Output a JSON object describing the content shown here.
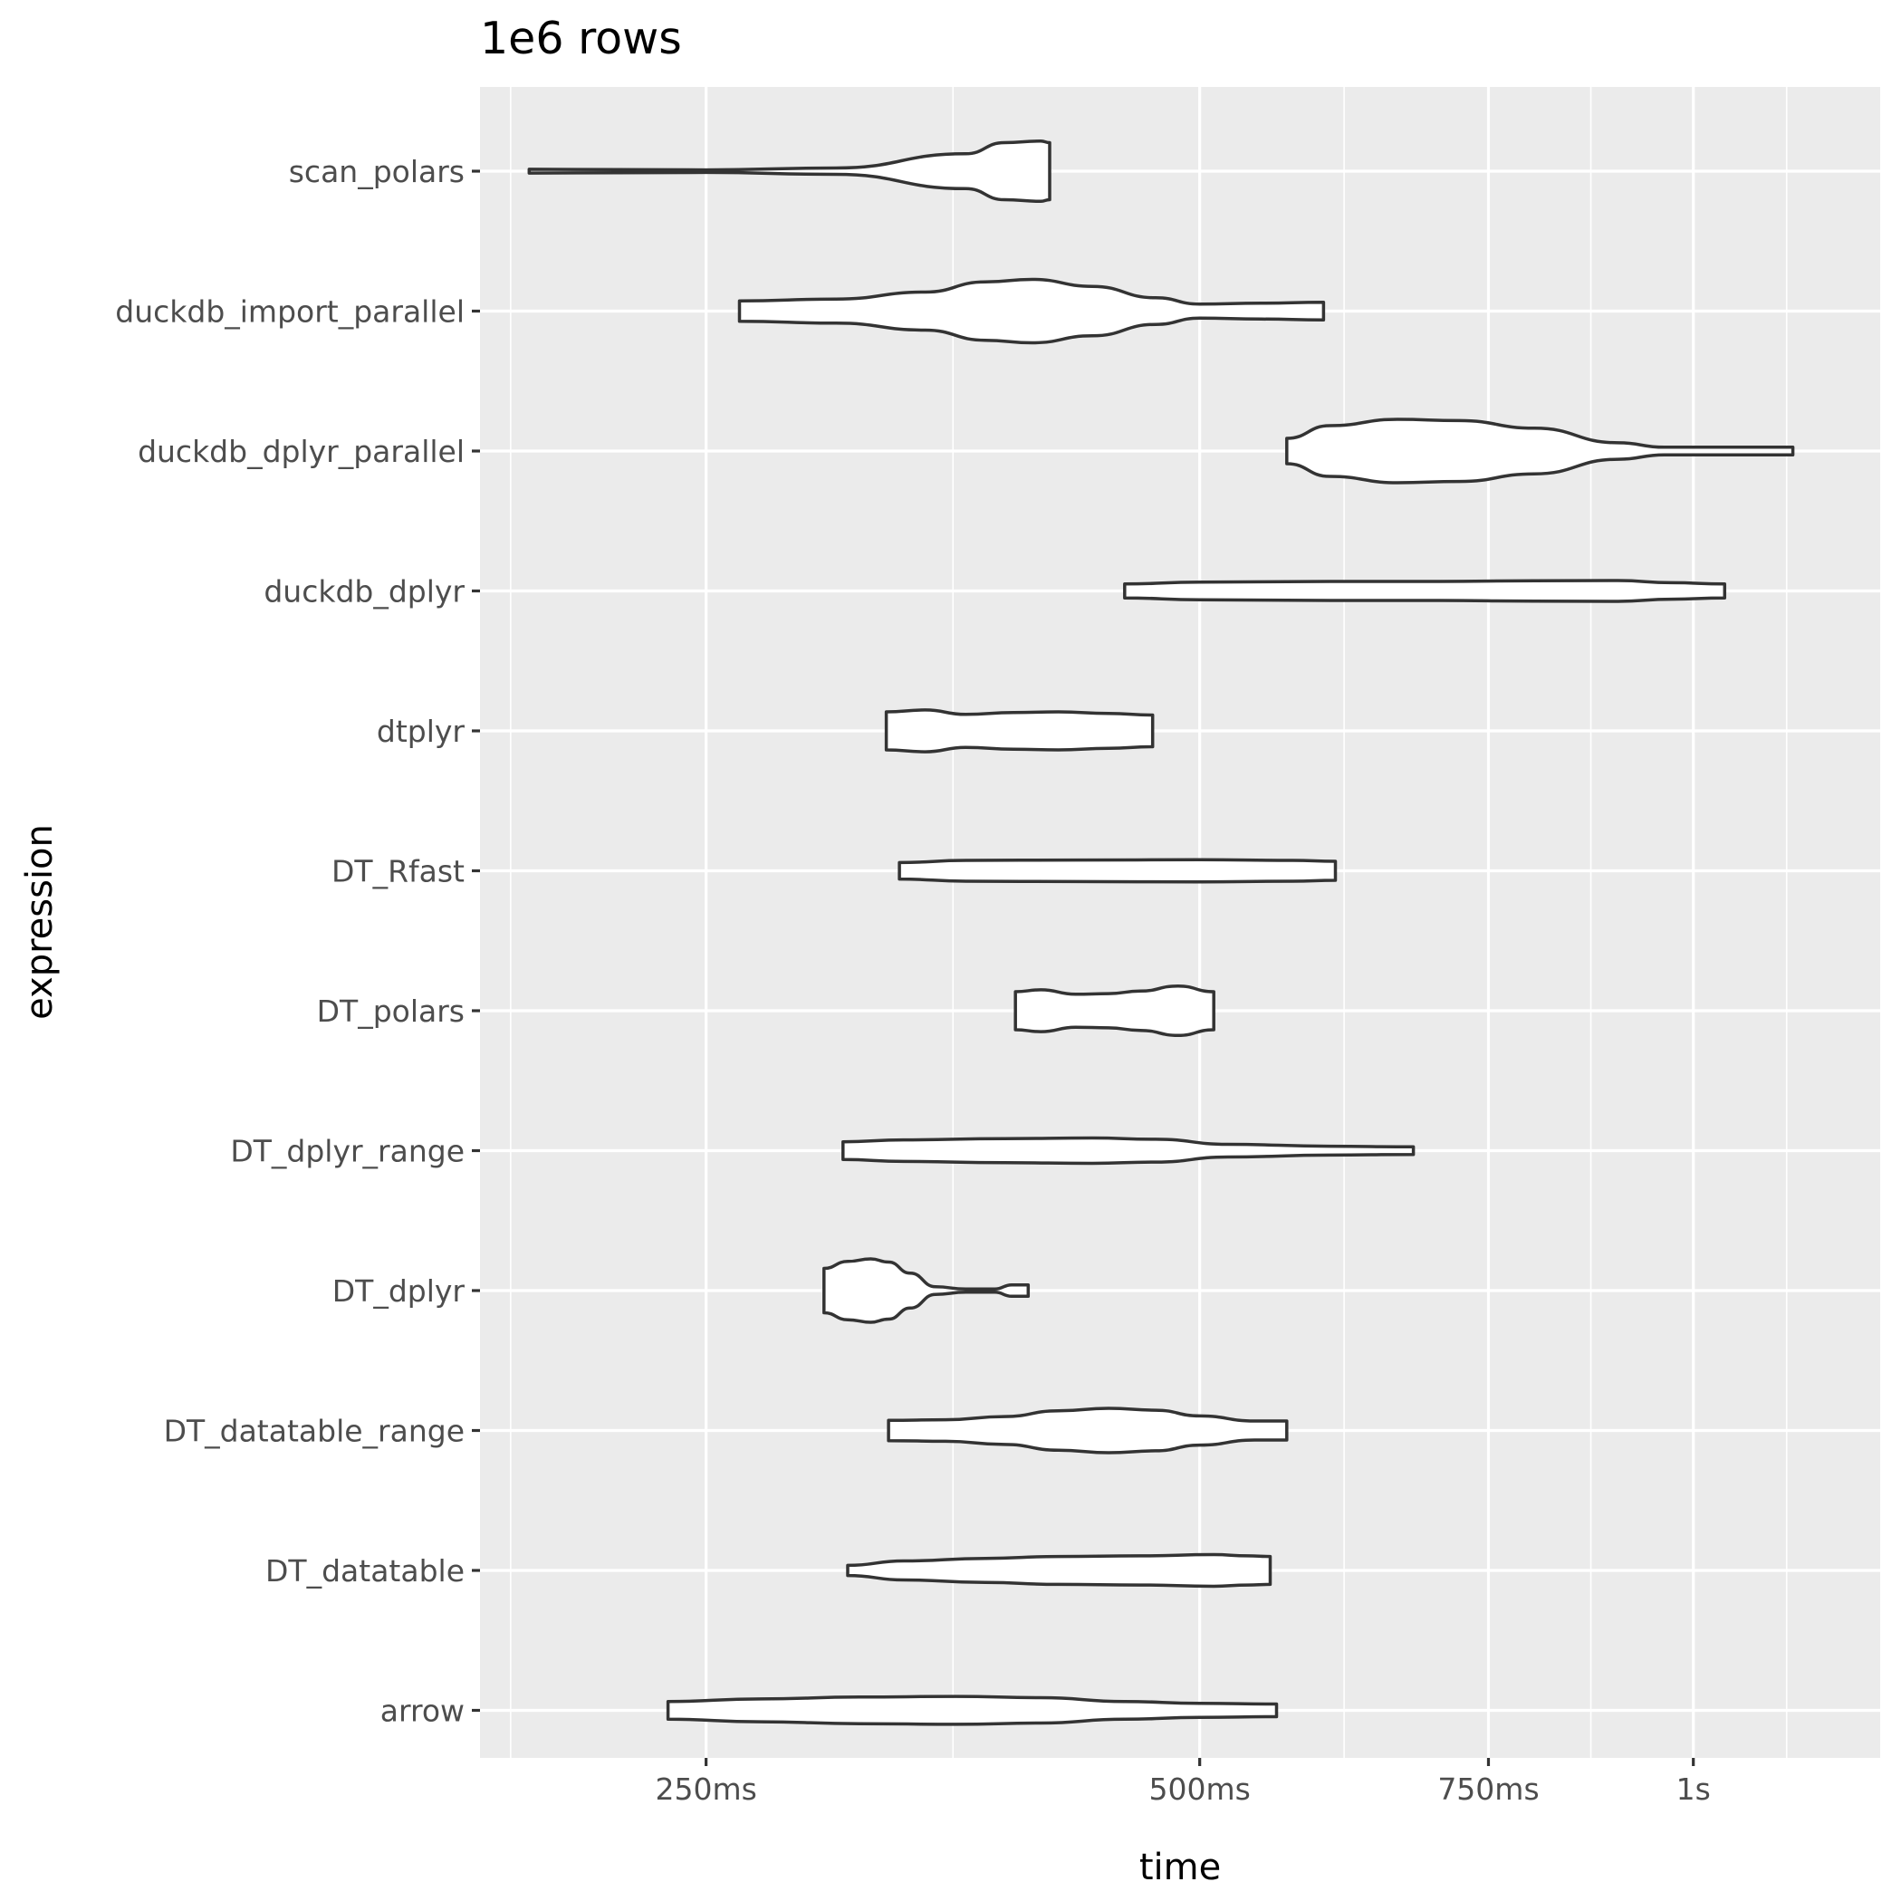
{
  "chart_data": {
    "type": "violin",
    "title": "1e6 rows",
    "xlabel": "time",
    "ylabel": "expression",
    "x_scale": "log10",
    "x_unit": "s",
    "xlim": [
      0.182,
      1.3
    ],
    "x_ticks": [
      {
        "value": 0.25,
        "label": "250ms"
      },
      {
        "value": 0.5,
        "label": "500ms"
      },
      {
        "value": 0.75,
        "label": "750ms"
      },
      {
        "value": 1.0,
        "label": "1s"
      }
    ],
    "x_minor_ticks": [
      0.19,
      0.3536,
      0.6124,
      0.866,
      1.14
    ],
    "background": "#ebebeb",
    "grid": true,
    "categories": [
      "arrow",
      "DT_datatable",
      "DT_datatable_range",
      "DT_dplyr",
      "DT_dplyr_range",
      "DT_polars",
      "DT_Rfast",
      "dtplyr",
      "duckdb_dplyr",
      "duckdb_dplyr_parallel",
      "duckdb_import_parallel",
      "scan_polars"
    ],
    "series": [
      {
        "category": "scan_polars",
        "min": 0.195,
        "max": 0.405,
        "profile": [
          [
            0.195,
            0.06
          ],
          [
            0.25,
            0.04
          ],
          [
            0.3,
            0.1
          ],
          [
            0.36,
            0.55
          ],
          [
            0.38,
            0.9
          ],
          [
            0.4,
            0.95
          ],
          [
            0.405,
            0.9
          ]
        ]
      },
      {
        "category": "duckdb_import_parallel",
        "min": 0.262,
        "max": 0.595,
        "profile": [
          [
            0.262,
            0.32
          ],
          [
            0.3,
            0.38
          ],
          [
            0.34,
            0.6
          ],
          [
            0.37,
            0.92
          ],
          [
            0.395,
            1.0
          ],
          [
            0.43,
            0.78
          ],
          [
            0.47,
            0.42
          ],
          [
            0.5,
            0.22
          ],
          [
            0.545,
            0.25
          ],
          [
            0.595,
            0.28
          ]
        ]
      },
      {
        "category": "duckdb_dplyr_parallel",
        "min": 0.565,
        "max": 1.15,
        "profile": [
          [
            0.565,
            0.4
          ],
          [
            0.6,
            0.8
          ],
          [
            0.66,
            1.0
          ],
          [
            0.72,
            0.96
          ],
          [
            0.8,
            0.72
          ],
          [
            0.9,
            0.26
          ],
          [
            0.96,
            0.12
          ],
          [
            1.05,
            0.12
          ],
          [
            1.15,
            0.12
          ]
        ]
      },
      {
        "category": "duckdb_dplyr",
        "min": 0.45,
        "max": 1.045,
        "profile": [
          [
            0.45,
            0.22
          ],
          [
            0.5,
            0.28
          ],
          [
            0.6,
            0.3
          ],
          [
            0.7,
            0.3
          ],
          [
            0.8,
            0.32
          ],
          [
            0.9,
            0.33
          ],
          [
            0.97,
            0.26
          ],
          [
            1.045,
            0.22
          ]
        ]
      },
      {
        "category": "dtplyr",
        "min": 0.322,
        "max": 0.468,
        "profile": [
          [
            0.322,
            0.6
          ],
          [
            0.34,
            0.66
          ],
          [
            0.36,
            0.52
          ],
          [
            0.385,
            0.58
          ],
          [
            0.41,
            0.6
          ],
          [
            0.44,
            0.55
          ],
          [
            0.468,
            0.5
          ]
        ]
      },
      {
        "category": "DT_Rfast",
        "min": 0.328,
        "max": 0.605,
        "profile": [
          [
            0.328,
            0.26
          ],
          [
            0.36,
            0.33
          ],
          [
            0.42,
            0.34
          ],
          [
            0.5,
            0.35
          ],
          [
            0.57,
            0.33
          ],
          [
            0.605,
            0.3
          ]
        ]
      },
      {
        "category": "DT_polars",
        "min": 0.386,
        "max": 0.51,
        "profile": [
          [
            0.386,
            0.6
          ],
          [
            0.4,
            0.66
          ],
          [
            0.42,
            0.52
          ],
          [
            0.44,
            0.54
          ],
          [
            0.46,
            0.62
          ],
          [
            0.485,
            0.78
          ],
          [
            0.51,
            0.6
          ]
        ]
      },
      {
        "category": "DT_dplyr_range",
        "min": 0.303,
        "max": 0.675,
        "profile": [
          [
            0.303,
            0.28
          ],
          [
            0.33,
            0.34
          ],
          [
            0.38,
            0.38
          ],
          [
            0.43,
            0.4
          ],
          [
            0.47,
            0.36
          ],
          [
            0.52,
            0.2
          ],
          [
            0.6,
            0.14
          ],
          [
            0.675,
            0.12
          ]
        ]
      },
      {
        "category": "DT_dplyr",
        "min": 0.295,
        "max": 0.393,
        "profile": [
          [
            0.295,
            0.7
          ],
          [
            0.305,
            0.92
          ],
          [
            0.315,
            1.0
          ],
          [
            0.323,
            0.9
          ],
          [
            0.333,
            0.55
          ],
          [
            0.345,
            0.12
          ],
          [
            0.36,
            0.05
          ],
          [
            0.375,
            0.05
          ],
          [
            0.384,
            0.18
          ],
          [
            0.393,
            0.18
          ]
        ]
      },
      {
        "category": "DT_datatable_range",
        "min": 0.323,
        "max": 0.565,
        "profile": [
          [
            0.323,
            0.32
          ],
          [
            0.35,
            0.34
          ],
          [
            0.38,
            0.44
          ],
          [
            0.41,
            0.62
          ],
          [
            0.44,
            0.7
          ],
          [
            0.47,
            0.64
          ],
          [
            0.5,
            0.46
          ],
          [
            0.54,
            0.3
          ],
          [
            0.565,
            0.3
          ]
        ]
      },
      {
        "category": "DT_datatable",
        "min": 0.305,
        "max": 0.552,
        "profile": [
          [
            0.305,
            0.16
          ],
          [
            0.33,
            0.3
          ],
          [
            0.37,
            0.38
          ],
          [
            0.41,
            0.44
          ],
          [
            0.46,
            0.46
          ],
          [
            0.51,
            0.5
          ],
          [
            0.535,
            0.46
          ],
          [
            0.552,
            0.44
          ]
        ]
      },
      {
        "category": "arrow",
        "min": 0.237,
        "max": 0.557,
        "profile": [
          [
            0.237,
            0.28
          ],
          [
            0.27,
            0.36
          ],
          [
            0.31,
            0.42
          ],
          [
            0.355,
            0.44
          ],
          [
            0.4,
            0.4
          ],
          [
            0.45,
            0.28
          ],
          [
            0.5,
            0.22
          ],
          [
            0.557,
            0.2
          ]
        ]
      }
    ]
  }
}
